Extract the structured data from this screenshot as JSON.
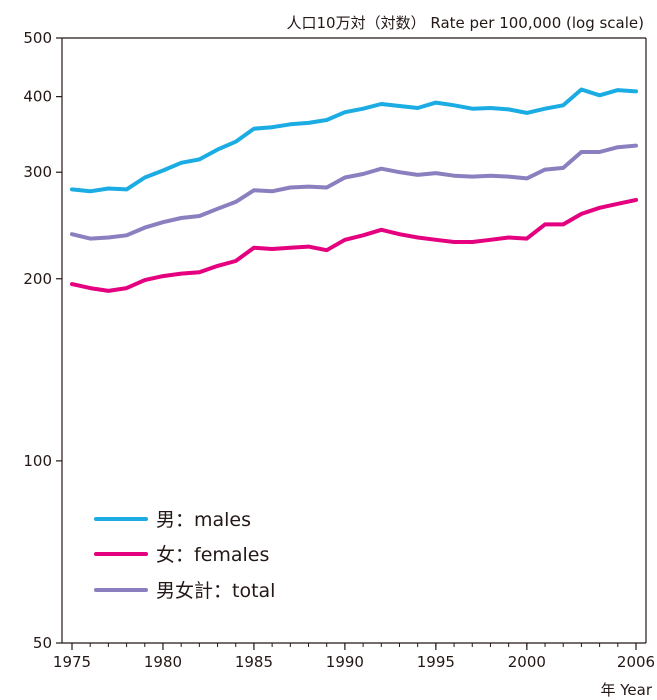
{
  "chart_data": {
    "type": "line",
    "title": "人口10万対（対数） Rate per 100,000 (log scale)",
    "xlabel": "年 Year",
    "ylabel": "",
    "yscale": "log",
    "ylim": [
      50,
      500
    ],
    "xlim": [
      1975,
      2006
    ],
    "yticks": [
      50,
      100,
      200,
      300,
      400,
      500
    ],
    "xticks": [
      1975,
      1980,
      1985,
      1990,
      1995,
      2000,
      2006
    ],
    "grid": false,
    "legend_position": "bottom-left",
    "x": [
      1975,
      1976,
      1977,
      1978,
      1979,
      1980,
      1981,
      1982,
      1983,
      1984,
      1985,
      1986,
      1987,
      1988,
      1989,
      1990,
      1991,
      1992,
      1993,
      1994,
      1995,
      1996,
      1997,
      1998,
      1999,
      2000,
      2001,
      2002,
      2003,
      2004,
      2005,
      2006
    ],
    "series": [
      {
        "name": "男：males",
        "color": "#1aace3",
        "values": [
          281,
          279,
          282,
          281,
          294,
          302,
          311,
          315,
          327,
          337,
          354,
          356,
          360,
          362,
          366,
          377,
          382,
          389,
          386,
          383,
          391,
          387,
          382,
          383,
          381,
          376,
          382,
          387,
          411,
          402,
          410,
          408
        ]
      },
      {
        "name": "女：females",
        "color": "#e4007f",
        "values": [
          196,
          193,
          191,
          193,
          199,
          202,
          204,
          205,
          210,
          214,
          225,
          224,
          225,
          226,
          223,
          232,
          236,
          241,
          237,
          234,
          232,
          230,
          230,
          232,
          234,
          233,
          246,
          246,
          256,
          262,
          266,
          270
        ]
      },
      {
        "name": "男女計：total",
        "color": "#8b7fc0",
        "values": [
          237,
          233,
          234,
          236,
          243,
          248,
          252,
          254,
          261,
          268,
          280,
          279,
          283,
          284,
          283,
          294,
          298,
          304,
          300,
          297,
          299,
          296,
          295,
          296,
          295,
          293,
          303,
          305,
          324,
          324,
          330,
          332
        ]
      }
    ]
  }
}
